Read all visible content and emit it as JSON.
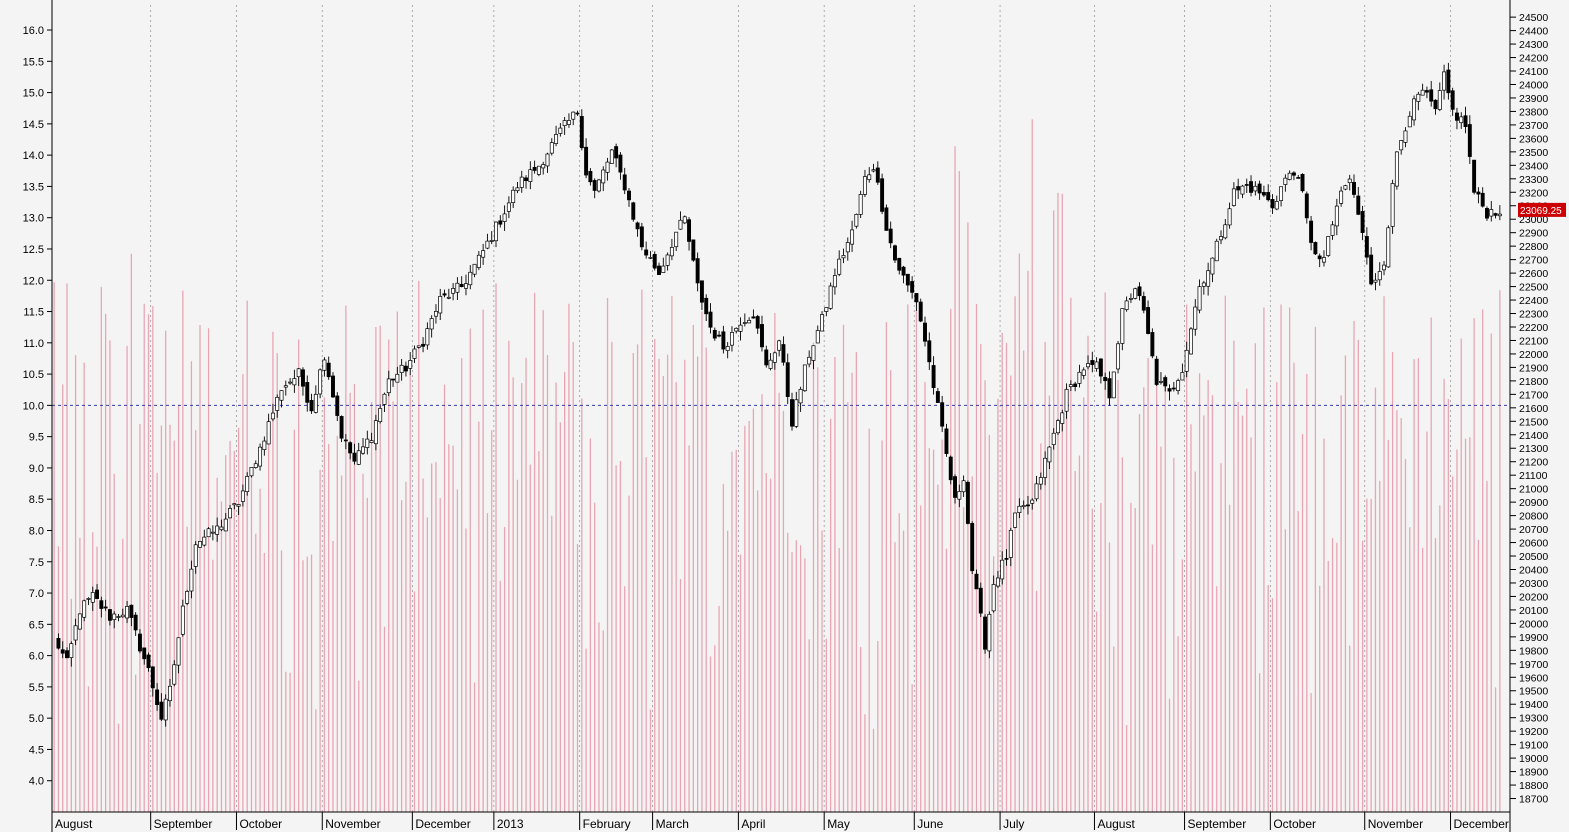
{
  "chart_data": {
    "type": "candlestick-with-volume",
    "colors": {
      "background": "#f4f4f4",
      "volume_bar": "#e8a6b4",
      "grid_line": "#9a9a9a",
      "reference_line": "#3a3aa8",
      "candle_up_fill": "#ffffff",
      "candle_down_fill": "#000000",
      "candle_outline": "#000000",
      "last_price_badge": "#cc0000",
      "last_price_text": "#ffffff"
    },
    "left_axis": {
      "range": [
        3.5,
        16.4
      ],
      "ticks": [
        "4.0",
        "4.5",
        "5.0",
        "5.5",
        "6.0",
        "6.5",
        "7.0",
        "7.5",
        "8.0",
        "8.5",
        "9.0",
        "9.5",
        "10.0",
        "10.5",
        "11.0",
        "11.5",
        "12.0",
        "12.5",
        "13.0",
        "13.5",
        "14.0",
        "14.5",
        "15.0",
        "15.5",
        "16.0"
      ]
    },
    "right_axis": {
      "range": [
        18600,
        24590
      ],
      "ticks": [
        "18700",
        "18800",
        "18900",
        "19000",
        "19100",
        "19200",
        "19300",
        "19400",
        "19500",
        "19600",
        "19700",
        "19800",
        "19900",
        "20000",
        "20100",
        "20200",
        "20300",
        "20400",
        "20500",
        "20600",
        "20700",
        "20800",
        "20900",
        "21000",
        "21100",
        "21200",
        "21300",
        "21400",
        "21500",
        "21600",
        "21700",
        "21800",
        "21900",
        "22000",
        "22100",
        "22200",
        "22300",
        "22400",
        "22500",
        "22600",
        "22700",
        "22800",
        "22900",
        "23000",
        "23100",
        "23200",
        "23300",
        "23400",
        "23500",
        "23600",
        "23700",
        "23800",
        "23900",
        "24000",
        "24100",
        "24200",
        "24300",
        "24400",
        "24500"
      ],
      "last_price_label": "23069.25",
      "last_price_value": 23069.25
    },
    "reference_line_value": 10.0,
    "x_months": [
      {
        "label": "August",
        "day_index": 0
      },
      {
        "label": "September",
        "day_index": 23
      },
      {
        "label": "October",
        "day_index": 43
      },
      {
        "label": "November",
        "day_index": 63
      },
      {
        "label": "December",
        "day_index": 84
      },
      {
        "label": "2013",
        "day_index": 103
      },
      {
        "label": "February",
        "day_index": 123
      },
      {
        "label": "March",
        "day_index": 140
      },
      {
        "label": "April",
        "day_index": 160
      },
      {
        "label": "May",
        "day_index": 180
      },
      {
        "label": "June",
        "day_index": 201
      },
      {
        "label": "July",
        "day_index": 221
      },
      {
        "label": "August",
        "day_index": 243
      },
      {
        "label": "September",
        "day_index": 264
      },
      {
        "label": "October",
        "day_index": 284
      },
      {
        "label": "November",
        "day_index": 306
      },
      {
        "label": "December",
        "day_index": 326
      }
    ],
    "num_days": 338,
    "price_anchors": [
      [
        0,
        19900
      ],
      [
        3,
        19700
      ],
      [
        6,
        20100
      ],
      [
        9,
        20200
      ],
      [
        13,
        20050
      ],
      [
        17,
        20100
      ],
      [
        22,
        19650
      ],
      [
        25,
        19300
      ],
      [
        27,
        19500
      ],
      [
        30,
        20100
      ],
      [
        33,
        20600
      ],
      [
        38,
        20700
      ],
      [
        43,
        20900
      ],
      [
        48,
        21300
      ],
      [
        53,
        21750
      ],
      [
        57,
        21850
      ],
      [
        60,
        21600
      ],
      [
        63,
        22000
      ],
      [
        67,
        21400
      ],
      [
        70,
        21200
      ],
      [
        74,
        21400
      ],
      [
        78,
        21800
      ],
      [
        82,
        21900
      ],
      [
        86,
        22100
      ],
      [
        90,
        22400
      ],
      [
        95,
        22500
      ],
      [
        99,
        22700
      ],
      [
        104,
        23000
      ],
      [
        108,
        23250
      ],
      [
        113,
        23400
      ],
      [
        118,
        23650
      ],
      [
        122,
        23800
      ],
      [
        124,
        23350
      ],
      [
        126,
        23200
      ],
      [
        130,
        23500
      ],
      [
        133,
        23250
      ],
      [
        137,
        22800
      ],
      [
        141,
        22600
      ],
      [
        145,
        22900
      ],
      [
        147,
        23000
      ],
      [
        150,
        22500
      ],
      [
        153,
        22200
      ],
      [
        156,
        22050
      ],
      [
        160,
        22250
      ],
      [
        163,
        22300
      ],
      [
        166,
        21900
      ],
      [
        169,
        22100
      ],
      [
        172,
        21500
      ],
      [
        176,
        22000
      ],
      [
        179,
        22250
      ],
      [
        182,
        22600
      ],
      [
        186,
        22900
      ],
      [
        189,
        23300
      ],
      [
        191,
        23400
      ],
      [
        194,
        22950
      ],
      [
        196,
        22700
      ],
      [
        199,
        22500
      ],
      [
        201,
        22400
      ],
      [
        203,
        22100
      ],
      [
        206,
        21600
      ],
      [
        210,
        20900
      ],
      [
        212,
        21100
      ],
      [
        214,
        20400
      ],
      [
        217,
        19850
      ],
      [
        219,
        20300
      ],
      [
        222,
        20500
      ],
      [
        224,
        20800
      ],
      [
        228,
        20900
      ],
      [
        233,
        21400
      ],
      [
        236,
        21700
      ],
      [
        240,
        21900
      ],
      [
        243,
        21900
      ],
      [
        246,
        21700
      ],
      [
        249,
        22300
      ],
      [
        252,
        22500
      ],
      [
        254,
        22300
      ],
      [
        257,
        21800
      ],
      [
        260,
        21700
      ],
      [
        263,
        21900
      ],
      [
        267,
        22500
      ],
      [
        270,
        22700
      ],
      [
        273,
        23000
      ],
      [
        275,
        23200
      ],
      [
        278,
        23250
      ],
      [
        281,
        23200
      ],
      [
        284,
        23100
      ],
      [
        287,
        23300
      ],
      [
        290,
        23350
      ],
      [
        293,
        22800
      ],
      [
        296,
        22700
      ],
      [
        299,
        23100
      ],
      [
        302,
        23300
      ],
      [
        305,
        22900
      ],
      [
        307,
        22500
      ],
      [
        310,
        22700
      ],
      [
        313,
        23500
      ],
      [
        316,
        23800
      ],
      [
        319,
        23950
      ],
      [
        322,
        23800
      ],
      [
        324,
        24050
      ],
      [
        326,
        23800
      ],
      [
        329,
        23700
      ],
      [
        331,
        23200
      ],
      [
        334,
        23050
      ],
      [
        337,
        23069
      ]
    ]
  }
}
